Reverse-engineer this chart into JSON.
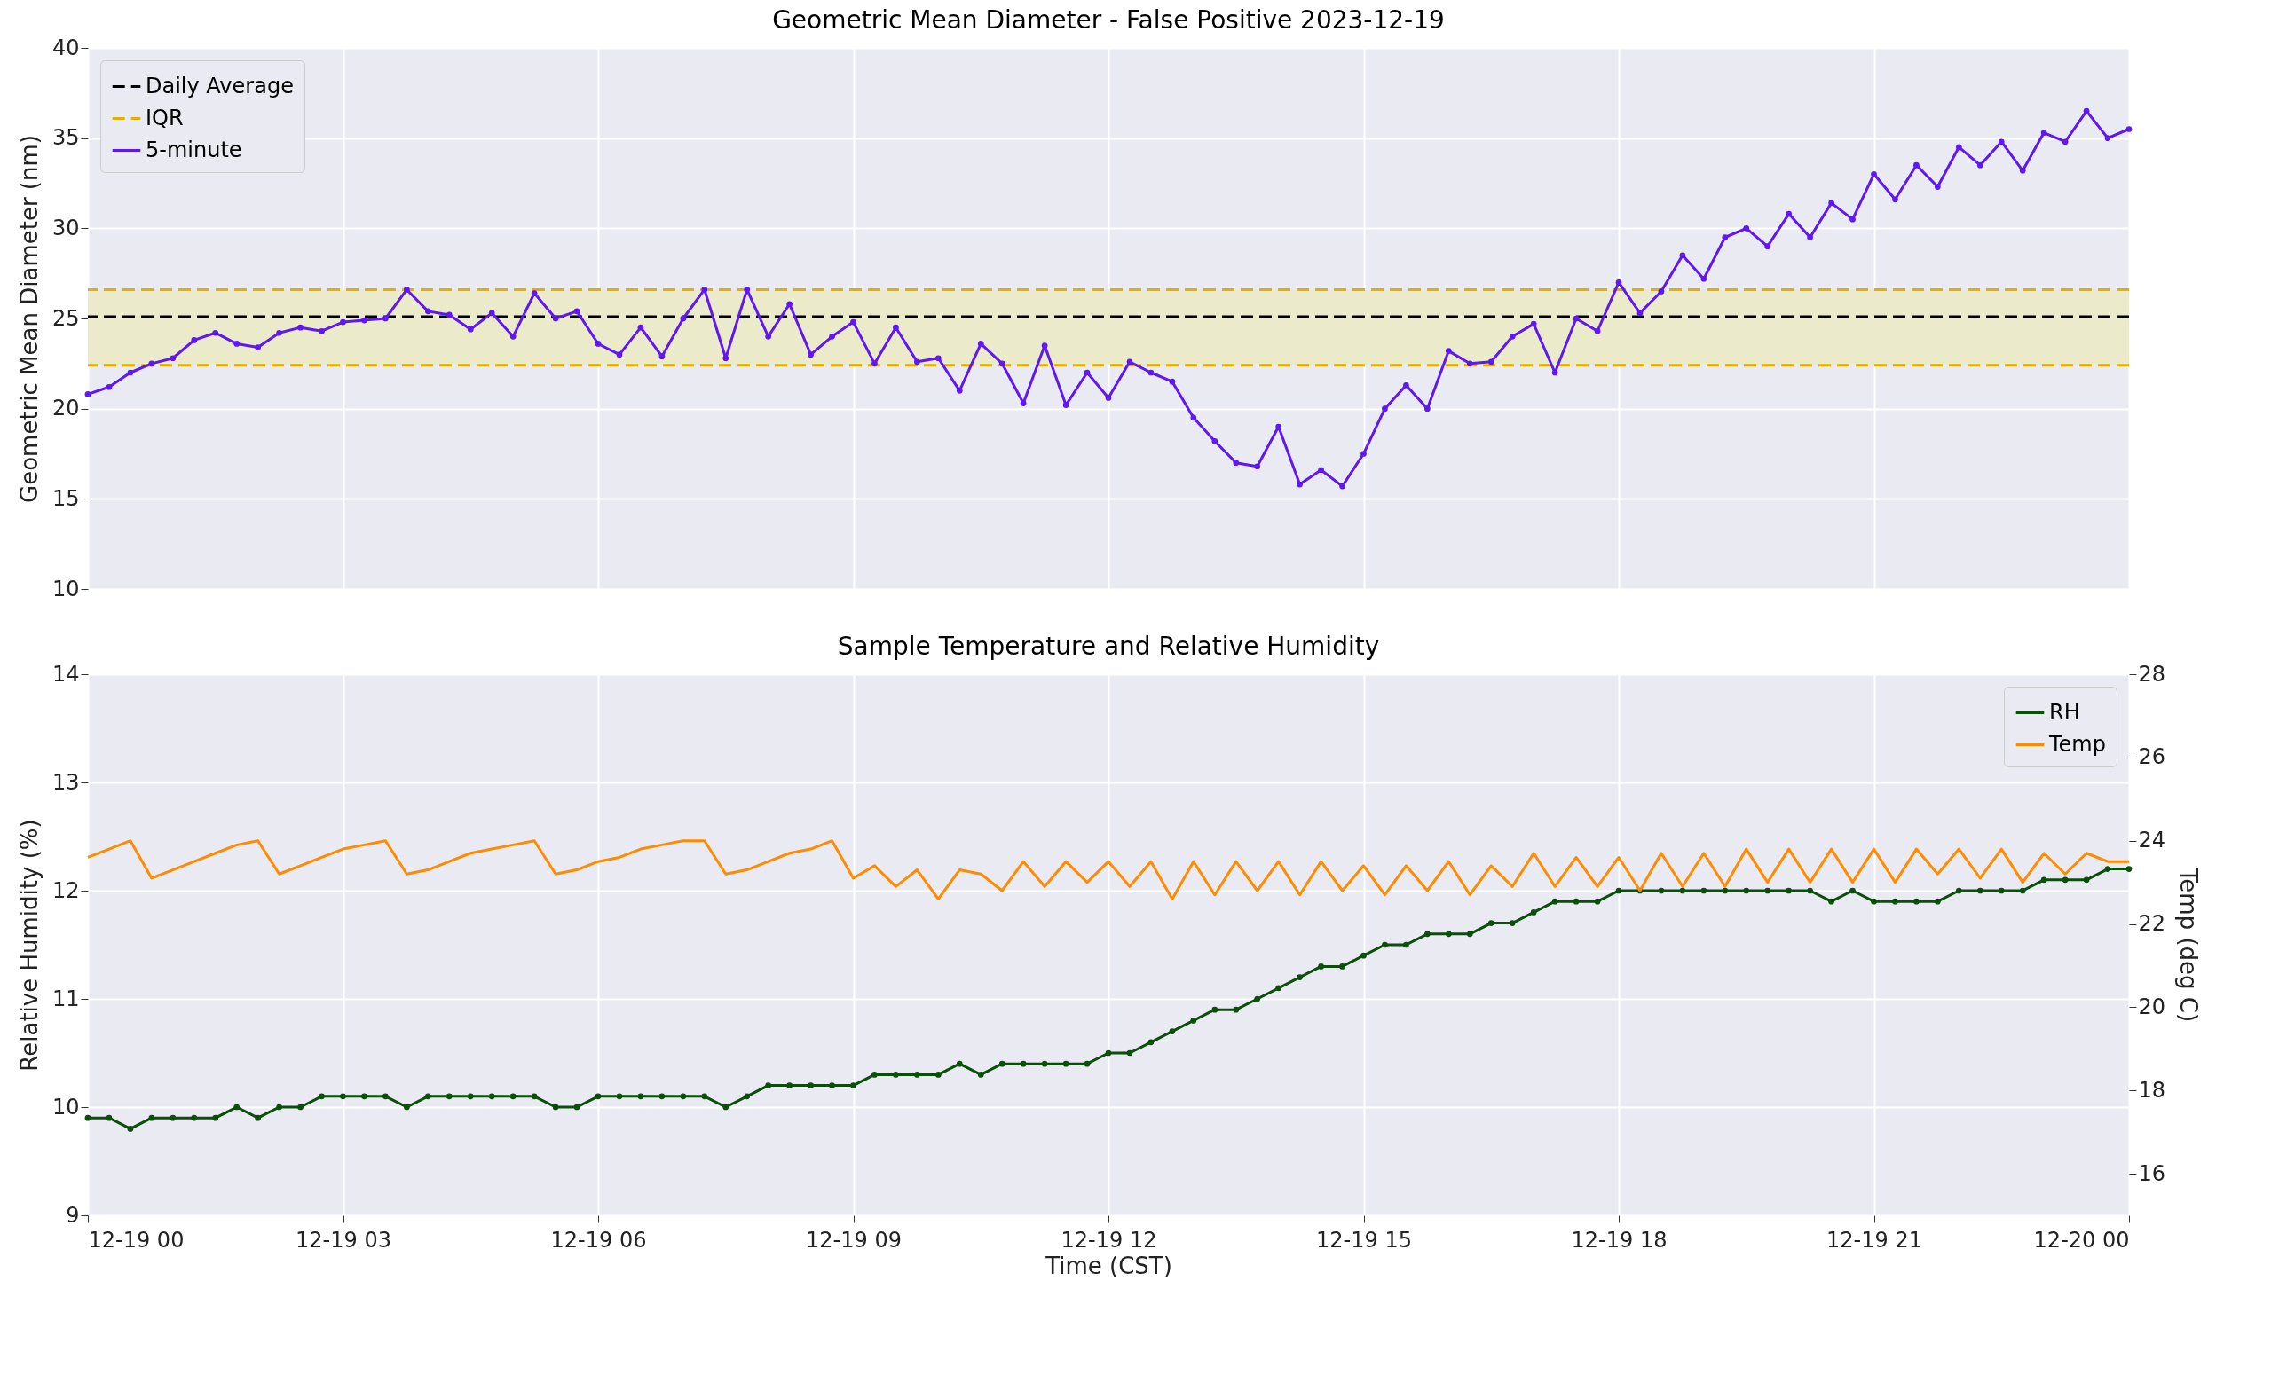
{
  "chart_data": [
    {
      "type": "line",
      "title": "Geometric Mean Diameter - False Positive 2023-12-19",
      "ylabel": "Geometric Mean Diameter (nm)",
      "x": [
        "2023-12-19T00:00",
        "2023-12-19T00:15",
        "2023-12-19T00:30",
        "2023-12-19T00:45",
        "2023-12-19T01:00",
        "2023-12-19T01:15",
        "2023-12-19T01:30",
        "2023-12-19T01:45",
        "2023-12-19T02:00",
        "2023-12-19T02:15",
        "2023-12-19T02:30",
        "2023-12-19T02:45",
        "2023-12-19T03:00",
        "2023-12-19T03:15",
        "2023-12-19T03:30",
        "2023-12-19T03:45",
        "2023-12-19T04:00",
        "2023-12-19T04:15",
        "2023-12-19T04:30",
        "2023-12-19T04:45",
        "2023-12-19T05:00",
        "2023-12-19T05:15",
        "2023-12-19T05:30",
        "2023-12-19T05:45",
        "2023-12-19T06:00",
        "2023-12-19T06:15",
        "2023-12-19T06:30",
        "2023-12-19T06:45",
        "2023-12-19T07:00",
        "2023-12-19T07:15",
        "2023-12-19T07:30",
        "2023-12-19T07:45",
        "2023-12-19T08:00",
        "2023-12-19T08:15",
        "2023-12-19T08:30",
        "2023-12-19T08:45",
        "2023-12-19T09:00",
        "2023-12-19T09:15",
        "2023-12-19T09:30",
        "2023-12-19T09:45",
        "2023-12-19T10:00",
        "2023-12-19T10:15",
        "2023-12-19T10:30",
        "2023-12-19T10:45",
        "2023-12-19T11:00",
        "2023-12-19T11:15",
        "2023-12-19T11:30",
        "2023-12-19T11:45",
        "2023-12-19T12:00",
        "2023-12-19T12:15",
        "2023-12-19T12:30",
        "2023-12-19T12:45",
        "2023-12-19T13:00",
        "2023-12-19T13:15",
        "2023-12-19T13:30",
        "2023-12-19T13:45",
        "2023-12-19T14:00",
        "2023-12-19T14:15",
        "2023-12-19T14:30",
        "2023-12-19T14:45",
        "2023-12-19T15:00",
        "2023-12-19T15:15",
        "2023-12-19T15:30",
        "2023-12-19T15:45",
        "2023-12-19T16:00",
        "2023-12-19T16:15",
        "2023-12-19T16:30",
        "2023-12-19T16:45",
        "2023-12-19T17:00",
        "2023-12-19T17:15",
        "2023-12-19T17:30",
        "2023-12-19T17:45",
        "2023-12-19T18:00",
        "2023-12-19T18:15",
        "2023-12-19T18:30",
        "2023-12-19T18:45",
        "2023-12-19T19:00",
        "2023-12-19T19:15",
        "2023-12-19T19:30",
        "2023-12-19T19:45",
        "2023-12-19T20:00",
        "2023-12-19T20:15",
        "2023-12-19T20:30",
        "2023-12-19T20:45",
        "2023-12-19T21:00",
        "2023-12-19T21:15",
        "2023-12-19T21:30",
        "2023-12-19T21:45",
        "2023-12-19T22:00",
        "2023-12-19T22:15",
        "2023-12-19T22:30",
        "2023-12-19T22:45",
        "2023-12-19T23:00",
        "2023-12-19T23:15",
        "2023-12-19T23:30",
        "2023-12-19T23:45",
        "2023-12-20T00:00"
      ],
      "series": [
        {
          "name": "5-minute",
          "color": "#5f18f2",
          "marker": "circle",
          "values": [
            20.8,
            21.2,
            22.0,
            22.5,
            22.8,
            23.8,
            24.2,
            23.6,
            23.4,
            24.2,
            24.5,
            24.3,
            24.8,
            24.9,
            25.0,
            26.6,
            25.4,
            25.2,
            24.4,
            25.3,
            24.0,
            26.4,
            25.0,
            25.4,
            23.6,
            23.0,
            24.5,
            22.9,
            25.0,
            26.6,
            22.8,
            26.6,
            24.0,
            25.8,
            23.0,
            24.0,
            24.8,
            22.5,
            24.5,
            22.6,
            22.8,
            21.0,
            23.6,
            22.5,
            20.3,
            23.5,
            20.2,
            22.0,
            20.6,
            22.6,
            22.0,
            21.5,
            19.5,
            18.2,
            17.0,
            16.8,
            19.0,
            15.8,
            16.6,
            15.7,
            17.5,
            20.0,
            21.3,
            20.0,
            23.2,
            22.5,
            22.6,
            24.0,
            24.7,
            22.0,
            25.0,
            24.3,
            27.0,
            25.3,
            26.5,
            28.5,
            27.2,
            29.5,
            30.0,
            29.0,
            30.8,
            29.5,
            31.4,
            30.5,
            33.0,
            31.6,
            33.5,
            32.3,
            34.5,
            33.5,
            34.8,
            33.2,
            35.3,
            34.8,
            36.5,
            35.0,
            35.5
          ]
        }
      ],
      "ref_lines": [
        {
          "axis": "y",
          "value": 25.1,
          "label": "Daily Average",
          "color": "#000000",
          "line_style": "dashed"
        },
        {
          "axis": "y",
          "value": 26.6,
          "label": "IQR",
          "color": "#e2b000",
          "line_style": "dashed"
        },
        {
          "axis": "y",
          "value": 22.4,
          "color": "#e2b000",
          "line_style": "dashed"
        }
      ],
      "bands": [
        {
          "axis": "y",
          "from": 22.4,
          "to": 26.6,
          "color": "#ebebcc"
        }
      ],
      "xlim": [
        "2023-12-19T00:00",
        "2023-12-20T00:00"
      ],
      "xticks": [
        {
          "value": "2023-12-19T00:00",
          "label": null
        },
        {
          "value": "2023-12-19T03:00",
          "label": null
        },
        {
          "value": "2023-12-19T06:00",
          "label": null
        },
        {
          "value": "2023-12-19T09:00",
          "label": null
        },
        {
          "value": "2023-12-19T12:00",
          "label": null
        },
        {
          "value": "2023-12-19T15:00",
          "label": null
        },
        {
          "value": "2023-12-19T18:00",
          "label": null
        },
        {
          "value": "2023-12-19T21:00",
          "label": null
        },
        {
          "value": "2023-12-20T00:00",
          "label": null
        }
      ],
      "ylim": [
        10,
        40
      ],
      "yticks": [
        10,
        15,
        20,
        25,
        30,
        35,
        40
      ],
      "tick_labels": "y",
      "grid": true,
      "legend": "top left"
    },
    {
      "type": "line",
      "title": "Sample Temperature and Relative Humidity",
      "xlabel": "Time (CST)",
      "ylabel": "Relative Humidity (%)",
      "y2label": "Temp (deg C)",
      "x": [
        "2023-12-19T00:00",
        "2023-12-19T00:15",
        "2023-12-19T00:30",
        "2023-12-19T00:45",
        "2023-12-19T01:00",
        "2023-12-19T01:15",
        "2023-12-19T01:30",
        "2023-12-19T01:45",
        "2023-12-19T02:00",
        "2023-12-19T02:15",
        "2023-12-19T02:30",
        "2023-12-19T02:45",
        "2023-12-19T03:00",
        "2023-12-19T03:15",
        "2023-12-19T03:30",
        "2023-12-19T03:45",
        "2023-12-19T04:00",
        "2023-12-19T04:15",
        "2023-12-19T04:30",
        "2023-12-19T04:45",
        "2023-12-19T05:00",
        "2023-12-19T05:15",
        "2023-12-19T05:30",
        "2023-12-19T05:45",
        "2023-12-19T06:00",
        "2023-12-19T06:15",
        "2023-12-19T06:30",
        "2023-12-19T06:45",
        "2023-12-19T07:00",
        "2023-12-19T07:15",
        "2023-12-19T07:30",
        "2023-12-19T07:45",
        "2023-12-19T08:00",
        "2023-12-19T08:15",
        "2023-12-19T08:30",
        "2023-12-19T08:45",
        "2023-12-19T09:00",
        "2023-12-19T09:15",
        "2023-12-19T09:30",
        "2023-12-19T09:45",
        "2023-12-19T10:00",
        "2023-12-19T10:15",
        "2023-12-19T10:30",
        "2023-12-19T10:45",
        "2023-12-19T11:00",
        "2023-12-19T11:15",
        "2023-12-19T11:30",
        "2023-12-19T11:45",
        "2023-12-19T12:00",
        "2023-12-19T12:15",
        "2023-12-19T12:30",
        "2023-12-19T12:45",
        "2023-12-19T13:00",
        "2023-12-19T13:15",
        "2023-12-19T13:30",
        "2023-12-19T13:45",
        "2023-12-19T14:00",
        "2023-12-19T14:15",
        "2023-12-19T14:30",
        "2023-12-19T14:45",
        "2023-12-19T15:00",
        "2023-12-19T15:15",
        "2023-12-19T15:30",
        "2023-12-19T15:45",
        "2023-12-19T16:00",
        "2023-12-19T16:15",
        "2023-12-19T16:30",
        "2023-12-19T16:45",
        "2023-12-19T17:00",
        "2023-12-19T17:15",
        "2023-12-19T17:30",
        "2023-12-19T17:45",
        "2023-12-19T18:00",
        "2023-12-19T18:15",
        "2023-12-19T18:30",
        "2023-12-19T18:45",
        "2023-12-19T19:00",
        "2023-12-19T19:15",
        "2023-12-19T19:30",
        "2023-12-19T19:45",
        "2023-12-19T20:00",
        "2023-12-19T20:15",
        "2023-12-19T20:30",
        "2023-12-19T20:45",
        "2023-12-19T21:00",
        "2023-12-19T21:15",
        "2023-12-19T21:30",
        "2023-12-19T21:45",
        "2023-12-19T22:00",
        "2023-12-19T22:15",
        "2023-12-19T22:30",
        "2023-12-19T22:45",
        "2023-12-19T23:00",
        "2023-12-19T23:15",
        "2023-12-19T23:30",
        "2023-12-19T23:45",
        "2023-12-20T00:00"
      ],
      "series": [
        {
          "name": "RH",
          "color": "#0b4f0b",
          "marker": "circle",
          "values": [
            9.9,
            9.9,
            9.8,
            9.9,
            9.9,
            9.9,
            9.9,
            10.0,
            9.9,
            10.0,
            10.0,
            10.1,
            10.1,
            10.1,
            10.1,
            10.0,
            10.1,
            10.1,
            10.1,
            10.1,
            10.1,
            10.1,
            10.0,
            10.0,
            10.1,
            10.1,
            10.1,
            10.1,
            10.1,
            10.1,
            10.0,
            10.1,
            10.2,
            10.2,
            10.2,
            10.2,
            10.2,
            10.3,
            10.3,
            10.3,
            10.3,
            10.4,
            10.3,
            10.4,
            10.4,
            10.4,
            10.4,
            10.4,
            10.5,
            10.5,
            10.6,
            10.7,
            10.8,
            10.9,
            10.9,
            11.0,
            11.1,
            11.2,
            11.3,
            11.3,
            11.4,
            11.5,
            11.5,
            11.6,
            11.6,
            11.6,
            11.7,
            11.7,
            11.8,
            11.9,
            11.9,
            11.9,
            12.0,
            12.0,
            12.0,
            12.0,
            12.0,
            12.0,
            12.0,
            12.0,
            12.0,
            12.0,
            11.9,
            12.0,
            11.9,
            11.9,
            11.9,
            11.9,
            12.0,
            12.0,
            12.0,
            12.0,
            12.1,
            12.1,
            12.1,
            12.2,
            12.2
          ]
        },
        {
          "name": "Temp",
          "color": "#ff8c00",
          "marker": "none",
          "axis": "y2",
          "values": [
            23.6,
            23.8,
            24.0,
            23.1,
            23.3,
            23.5,
            23.7,
            23.9,
            24.0,
            23.2,
            23.4,
            23.6,
            23.8,
            23.9,
            24.0,
            23.2,
            23.3,
            23.5,
            23.7,
            23.8,
            23.9,
            24.0,
            23.2,
            23.3,
            23.5,
            23.6,
            23.8,
            23.9,
            24.0,
            24.0,
            23.2,
            23.3,
            23.5,
            23.7,
            23.8,
            24.0,
            23.1,
            23.4,
            22.9,
            23.3,
            22.6,
            23.3,
            23.2,
            22.8,
            23.5,
            22.9,
            23.5,
            23.0,
            23.5,
            22.9,
            23.5,
            22.6,
            23.5,
            22.7,
            23.5,
            22.8,
            23.5,
            22.7,
            23.5,
            22.8,
            23.4,
            22.7,
            23.4,
            22.8,
            23.5,
            22.7,
            23.4,
            22.9,
            23.7,
            22.9,
            23.6,
            22.9,
            23.6,
            22.8,
            23.7,
            22.9,
            23.7,
            22.9,
            23.8,
            23.0,
            23.8,
            23.0,
            23.8,
            23.0,
            23.8,
            23.0,
            23.8,
            23.2,
            23.8,
            23.1,
            23.8,
            23.0,
            23.7,
            23.2,
            23.7,
            23.5,
            23.5
          ]
        }
      ],
      "xlim": [
        "2023-12-19T00:00",
        "2023-12-20T00:00"
      ],
      "xticks": [
        {
          "value": "2023-12-19T00:00",
          "label": "12-19 00"
        },
        {
          "value": "2023-12-19T03:00",
          "label": "12-19 03"
        },
        {
          "value": "2023-12-19T06:00",
          "label": "12-19 06"
        },
        {
          "value": "2023-12-19T09:00",
          "label": "12-19 09"
        },
        {
          "value": "2023-12-19T12:00",
          "label": "12-19 12"
        },
        {
          "value": "2023-12-19T15:00",
          "label": "12-19 15"
        },
        {
          "value": "2023-12-19T18:00",
          "label": "12-19 18"
        },
        {
          "value": "2023-12-19T21:00",
          "label": "12-19 21"
        },
        {
          "value": "2023-12-20T00:00",
          "label": "12-20 00"
        }
      ],
      "ylim": [
        9,
        14
      ],
      "yticks": [
        9,
        10,
        11,
        12,
        13,
        14
      ],
      "y2lim": [
        15,
        28
      ],
      "y2ticks": [
        16,
        18,
        20,
        22,
        24,
        26,
        28
      ],
      "grid": true,
      "legend": "top right"
    }
  ]
}
